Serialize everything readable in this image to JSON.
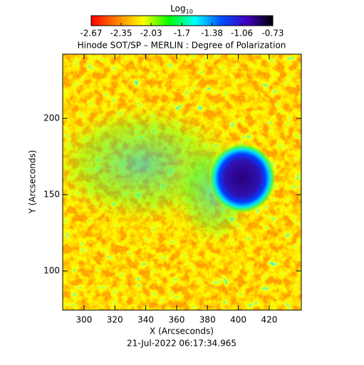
{
  "chart_data": {
    "type": "image",
    "title": "Hinode SOT/SP – MERLIN : Degree of Polarization",
    "colorbar_label": "Log",
    "colorbar_label_sub": "10",
    "clim": [
      -2.67,
      -0.73
    ],
    "cticks": [
      -2.67,
      -2.35,
      -2.03,
      -1.7,
      -1.38,
      -1.06,
      -0.73
    ],
    "colors": [
      "#ff0000",
      "#ff8000",
      "#ffff00",
      "#00ff00",
      "#00ffff",
      "#0050ff",
      "#4000c0",
      "#000000"
    ],
    "xlabel": "X (Arcseconds)",
    "ylabel": "Y (Arcseconds)",
    "xlim": [
      286.2,
      440.8
    ],
    "ylim": [
      74.3,
      242.1
    ],
    "xticks": [
      300,
      320,
      340,
      360,
      380,
      400,
      420
    ],
    "yticks": [
      100,
      150,
      200
    ],
    "date": "21-Jul-2022 06:17:34.965"
  }
}
